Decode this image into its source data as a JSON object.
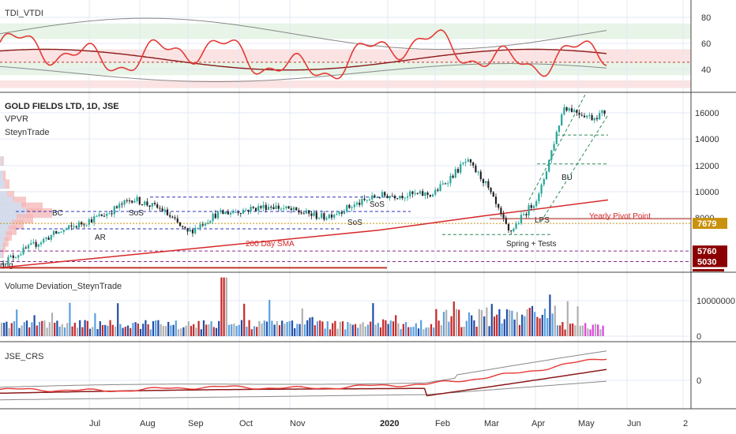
{
  "colors": {
    "grid": "#e3e9f5",
    "axis_text": "#333333",
    "pane_border": "#444444",
    "tdi_red": "#e53935",
    "tdi_dark": "#8b1a1a",
    "band_gray": "#888888",
    "price_up": "#26a69a",
    "price_down": "#222222",
    "sma": "#d62728",
    "blue_dash": "#3030c0",
    "vol_blue": "#1f4ea8",
    "vol_red": "#c62828",
    "vol_gray": "#b0b0b0",
    "vol_light": "#5aa0e0",
    "vol_pink": "#e040e0",
    "gold": "#c9920d",
    "maroon": "#8b0000"
  },
  "panes": {
    "tdi": {
      "title": "TDI_VTDI",
      "y_ticks": [
        "80",
        "60",
        "40"
      ],
      "ylim": [
        28,
        92
      ]
    },
    "price": {
      "title": "GOLD FIELDS LTD, 1D, JSE",
      "subtitle1": "VPVR",
      "subtitle2": "SteynTrade",
      "y_ticks": [
        "16000",
        "14000",
        "12000",
        "10000",
        "8000"
      ],
      "ylim": [
        4400,
        16600
      ],
      "badges": [
        {
          "text": "7679",
          "value": 7679,
          "color": "#c9920d"
        },
        {
          "text": "5760",
          "value": 5760,
          "color": "#8b0000"
        },
        {
          "text": "5030",
          "value": 5030,
          "color": "#8b0000"
        }
      ],
      "annotations": {
        "bc": "BC",
        "ar": "AR",
        "sos1": "SoS",
        "sos2": "SoS",
        "sos3": "SoS",
        "lps": "LPS",
        "bu": "BU",
        "spring_tests": "Spring + Tests",
        "spring_left": "ring",
        "sma_label": "200 Day SMA",
        "pivot_label": "Yearly Pivot Point"
      }
    },
    "volume": {
      "title": "Volume Deviation_SteynTrade",
      "y_ticks": [
        "10000000",
        "0"
      ],
      "ylim": [
        0,
        17000000
      ]
    },
    "crs": {
      "title": "JSE_CRS",
      "y_ticks": [
        "0"
      ]
    }
  },
  "x_axis": {
    "labels": [
      "Jul",
      "Aug",
      "Sep",
      "Oct",
      "Nov",
      "2020",
      "Feb",
      "Mar",
      "Apr",
      "May",
      "Jun",
      "2"
    ]
  },
  "chart_data": {
    "type": "candlestick",
    "title": "GOLD FIELDS LTD, 1D, JSE",
    "x_range": [
      "2019-06",
      "2020-06"
    ],
    "price_ylim": [
      4400,
      16600
    ],
    "key_levels": {
      "yearly_pivot_point": 7679,
      "support_1": 5760,
      "support_2": 5030
    },
    "price_anchors": [
      {
        "x": "2019-06-01",
        "close": 4900
      },
      {
        "x": "2019-07-01",
        "close": 6900
      },
      {
        "x": "2019-08-01",
        "close": 8400
      },
      {
        "x": "2019-08-15",
        "close": 9400
      },
      {
        "x": "2019-09-01",
        "close": 8600
      },
      {
        "x": "2019-09-15",
        "close": 7000
      },
      {
        "x": "2019-10-01",
        "close": 8300
      },
      {
        "x": "2019-11-01",
        "close": 8900
      },
      {
        "x": "2019-12-01",
        "close": 8100
      },
      {
        "x": "2020-01-01",
        "close": 9600
      },
      {
        "x": "2020-02-01",
        "close": 9700
      },
      {
        "x": "2020-02-20",
        "close": 12000
      },
      {
        "x": "2020-03-01",
        "close": 10600
      },
      {
        "x": "2020-03-15",
        "close": 7000
      },
      {
        "x": "2020-04-01",
        "close": 9600
      },
      {
        "x": "2020-04-15",
        "close": 15800
      },
      {
        "x": "2020-05-01",
        "close": 15000
      },
      {
        "x": "2020-05-10",
        "close": 15500
      }
    ],
    "sma_200": [
      {
        "x": "2019-06-01",
        "value": 4600
      },
      {
        "x": "2020-01-01",
        "value": 7200
      },
      {
        "x": "2020-03-01",
        "value": 8200
      },
      {
        "x": "2020-05-10",
        "value": 9300
      }
    ],
    "tdi_ylim": [
      28,
      92
    ],
    "tdi_levels": [
      80,
      60,
      50,
      40
    ],
    "volume_ylim": [
      0,
      17000000
    ],
    "volume_ticks": [
      10000000,
      0
    ]
  }
}
